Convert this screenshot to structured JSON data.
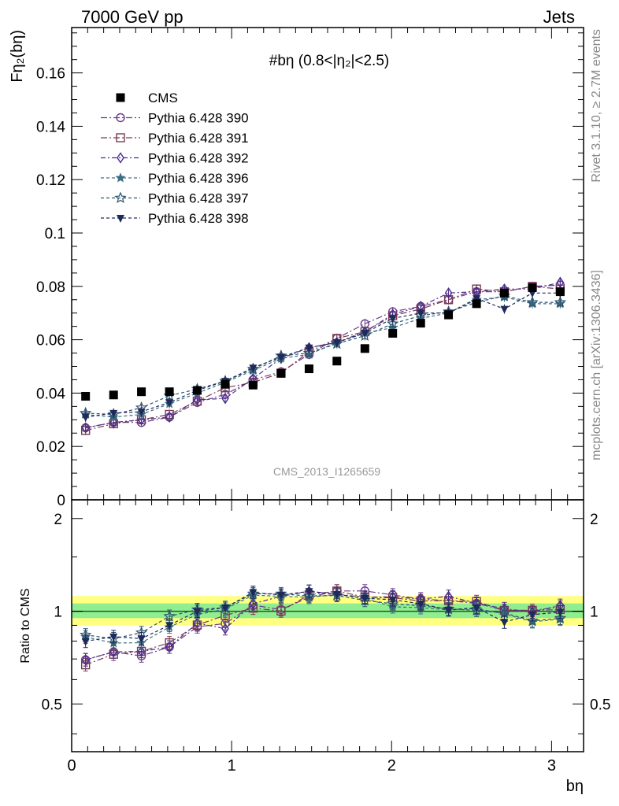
{
  "header": {
    "left": "7000 GeV pp",
    "right": "Jets"
  },
  "side_labels": {
    "rivet": "Rivet 3.1.10, ≥ 2.7M events",
    "mcplots": "mcplots.cern.ch [arXiv:1306.3436]"
  },
  "chart_data": {
    "type": "scatter",
    "title": "#bη (0.8<|η₂|<2.5)",
    "ylabel": "Fη₂(bη)",
    "xlabel": "bη",
    "ratio_ylabel": "Ratio to CMS",
    "watermark": "CMS_2013_I1265659",
    "xlim": [
      0,
      3.2
    ],
    "ylim": [
      0,
      0.177
    ],
    "ratio_ylim": [
      0.35,
      2.3
    ],
    "ratio_scale": "log",
    "x_ticks": [
      "0",
      "1",
      "2",
      "3"
    ],
    "y_ticks": [
      "0",
      "0.02",
      "0.04",
      "0.06",
      "0.08",
      "0.1",
      "0.12",
      "0.14",
      "0.16"
    ],
    "ratio_ticks": [
      "0.5",
      "1",
      "2"
    ],
    "legend_position": "top-left",
    "x": [
      0.087,
      0.262,
      0.436,
      0.611,
      0.785,
      0.96,
      1.134,
      1.309,
      1.484,
      1.658,
      1.833,
      2.007,
      2.182,
      2.356,
      2.531,
      2.705,
      2.88,
      3.054
    ],
    "reference": {
      "name": "CMS",
      "color": "#000000",
      "values": [
        0.0388,
        0.0393,
        0.0405,
        0.0405,
        0.041,
        0.0433,
        0.043,
        0.0474,
        0.0491,
        0.052,
        0.0567,
        0.0624,
        0.0662,
        0.0693,
        0.0735,
        0.0775,
        0.0795,
        0.078
      ]
    },
    "series": [
      {
        "name": "Pythia 6.428 390",
        "marker": "circle-open",
        "color": "#6b3d8a",
        "dash": "8,3,2,3",
        "values": [
          0.027,
          0.029,
          0.029,
          0.031,
          0.0365,
          0.0395,
          0.045,
          0.048,
          0.0545,
          0.0605,
          0.066,
          0.0705,
          0.0725,
          0.075,
          0.078,
          0.078,
          0.08,
          0.0805
        ]
      },
      {
        "name": "Pythia 6.428 391",
        "marker": "square-open",
        "color": "#7a3b52",
        "dash": "8,3,2,3",
        "values": [
          0.026,
          0.0285,
          0.03,
          0.032,
          0.037,
          0.042,
          0.044,
          0.0475,
          0.0555,
          0.0605,
          0.063,
          0.069,
          0.0715,
          0.075,
          0.079,
          0.078,
          0.08,
          0.079
        ]
      },
      {
        "name": "Pythia 6.428 392",
        "marker": "diamond-open",
        "color": "#4a2e8c",
        "dash": "6,3,2,3",
        "values": [
          0.027,
          0.029,
          0.03,
          0.031,
          0.0375,
          0.038,
          0.0455,
          0.053,
          0.057,
          0.059,
          0.063,
          0.0695,
          0.0725,
          0.0775,
          0.078,
          0.079,
          0.079,
          0.0815
        ]
      },
      {
        "name": "Pythia 6.428 396",
        "marker": "star-filled",
        "color": "#3f6e82",
        "dash": "4,3",
        "values": [
          0.032,
          0.031,
          0.032,
          0.036,
          0.04,
          0.044,
          0.0485,
          0.053,
          0.0545,
          0.059,
          0.0625,
          0.0645,
          0.068,
          0.07,
          0.075,
          0.076,
          0.0735,
          0.0735
        ]
      },
      {
        "name": "Pythia 6.428 397",
        "marker": "star-open",
        "color": "#2e5470",
        "dash": "4,3",
        "values": [
          0.0325,
          0.032,
          0.0345,
          0.039,
          0.0415,
          0.0445,
          0.049,
          0.054,
          0.055,
          0.0585,
          0.0615,
          0.066,
          0.069,
          0.0705,
          0.074,
          0.0765,
          0.074,
          0.074
        ]
      },
      {
        "name": "Pythia 6.428 398",
        "marker": "triangle-down-filled",
        "color": "#1e2a5a",
        "dash": "4,3",
        "values": [
          0.031,
          0.0325,
          0.033,
          0.0365,
          0.041,
          0.0445,
          0.0495,
          0.0535,
          0.057,
          0.059,
          0.0625,
          0.068,
          0.07,
          0.07,
          0.0755,
          0.0715,
          0.0775,
          0.0775
        ]
      }
    ],
    "bands": {
      "inner_color": "#90ee90",
      "outer_color": "#ffff80"
    }
  }
}
